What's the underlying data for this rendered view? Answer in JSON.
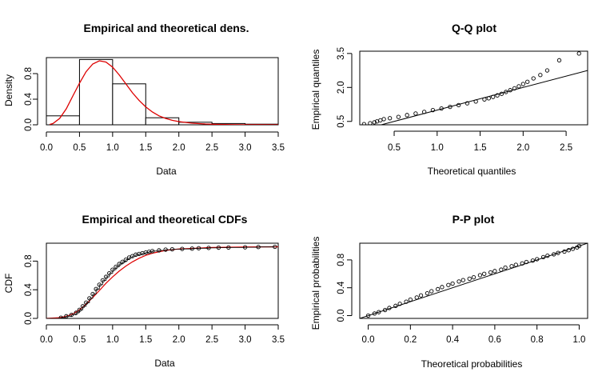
{
  "chart_data": [
    {
      "type": "bar",
      "title": "Empirical and theoretical dens.",
      "xlabel": "Data",
      "ylabel": "Density",
      "xlim": [
        0,
        3.5
      ],
      "ylim": [
        0,
        1.05
      ],
      "xticks": [
        "0.0",
        "0.5",
        "1.0",
        "1.5",
        "2.0",
        "2.5",
        "3.0",
        "3.5"
      ],
      "yticks": [
        "0.0",
        "0.4",
        "0.8"
      ],
      "histogram": {
        "breaks": [
          0,
          0.5,
          1.0,
          1.5,
          2.0,
          2.5,
          3.0,
          3.5
        ],
        "density": [
          0.14,
          1.02,
          0.64,
          0.11,
          0.04,
          0.02,
          0.01
        ]
      },
      "density_curve": {
        "color": "#dd0000",
        "x": [
          0.05,
          0.1,
          0.2,
          0.3,
          0.4,
          0.5,
          0.6,
          0.7,
          0.8,
          0.9,
          1.0,
          1.1,
          1.2,
          1.3,
          1.4,
          1.5,
          1.6,
          1.7,
          1.8,
          1.9,
          2.0,
          2.2,
          2.4,
          2.6,
          2.8,
          3.0,
          3.2,
          3.5
        ],
        "y": [
          0.005,
          0.02,
          0.1,
          0.25,
          0.45,
          0.65,
          0.83,
          0.95,
          1.0,
          0.98,
          0.9,
          0.78,
          0.64,
          0.5,
          0.38,
          0.28,
          0.2,
          0.14,
          0.1,
          0.07,
          0.05,
          0.025,
          0.012,
          0.006,
          0.003,
          0.0015,
          0.0008,
          0.0002
        ]
      }
    },
    {
      "type": "scatter",
      "title": "Q-Q plot",
      "xlabel": "Theoretical quantiles",
      "ylabel": "Empirical quantiles",
      "xlim": [
        0.1,
        2.75
      ],
      "ylim": [
        0.35,
        3.6
      ],
      "xticks": [
        "0.5",
        "1.0",
        "1.5",
        "2.0",
        "2.5"
      ],
      "yticks": [
        "0.5",
        "2.0",
        "3.5"
      ],
      "reference_line": {
        "x": [
          0.1,
          2.75
        ],
        "y": [
          0.1,
          2.75
        ]
      },
      "series": [
        {
          "x": [
            0.15,
            0.22,
            0.27,
            0.3,
            0.34,
            0.38,
            0.45,
            0.55,
            0.65,
            0.75,
            0.85,
            0.95,
            1.05,
            1.15,
            1.25,
            1.35,
            1.45,
            1.55,
            1.6,
            1.65,
            1.7,
            1.75,
            1.8,
            1.85,
            1.9,
            1.95,
            2.0,
            2.05,
            2.12,
            2.2,
            2.28,
            2.42,
            2.65
          ],
          "y": [
            0.38,
            0.42,
            0.46,
            0.5,
            0.55,
            0.6,
            0.64,
            0.7,
            0.78,
            0.85,
            0.92,
            1.0,
            1.07,
            1.14,
            1.22,
            1.3,
            1.38,
            1.47,
            1.52,
            1.58,
            1.65,
            1.72,
            1.8,
            1.88,
            1.96,
            2.05,
            2.15,
            2.25,
            2.4,
            2.55,
            2.75,
            3.2,
            3.5
          ]
        }
      ]
    },
    {
      "type": "line",
      "title": "Empirical and theoretical CDFs",
      "xlabel": "Data",
      "ylabel": "CDF",
      "xlim": [
        0,
        3.5
      ],
      "ylim": [
        0,
        1.05
      ],
      "xticks": [
        "0.0",
        "0.5",
        "1.0",
        "1.5",
        "2.0",
        "2.5",
        "3.0",
        "3.5"
      ],
      "yticks": [
        "0.0",
        "0.4",
        "0.8"
      ],
      "theoretical_cdf": {
        "color": "#dd0000",
        "x": [
          0.0,
          0.2,
          0.3,
          0.4,
          0.5,
          0.6,
          0.7,
          0.8,
          0.9,
          1.0,
          1.1,
          1.2,
          1.3,
          1.4,
          1.5,
          1.6,
          1.8,
          2.0,
          2.5,
          3.0,
          3.5
        ],
        "y": [
          0.0,
          0.01,
          0.03,
          0.06,
          0.12,
          0.2,
          0.29,
          0.39,
          0.49,
          0.58,
          0.66,
          0.73,
          0.79,
          0.84,
          0.88,
          0.91,
          0.95,
          0.97,
          0.99,
          0.997,
          1.0
        ]
      },
      "series": [
        {
          "name": "empirical",
          "x": [
            0.22,
            0.3,
            0.38,
            0.45,
            0.5,
            0.55,
            0.6,
            0.65,
            0.7,
            0.75,
            0.8,
            0.85,
            0.9,
            0.95,
            1.0,
            1.05,
            1.1,
            1.15,
            1.2,
            1.25,
            1.3,
            1.35,
            1.4,
            1.45,
            1.5,
            1.55,
            1.6,
            1.7,
            1.8,
            1.9,
            2.05,
            2.2,
            2.3,
            2.45,
            2.6,
            2.75,
            3.0,
            3.2,
            3.45
          ],
          "y": [
            0.01,
            0.03,
            0.05,
            0.08,
            0.12,
            0.17,
            0.22,
            0.28,
            0.34,
            0.41,
            0.47,
            0.53,
            0.58,
            0.63,
            0.68,
            0.72,
            0.76,
            0.79,
            0.82,
            0.85,
            0.87,
            0.89,
            0.9,
            0.91,
            0.92,
            0.93,
            0.94,
            0.95,
            0.96,
            0.965,
            0.97,
            0.975,
            0.98,
            0.984,
            0.988,
            0.99,
            0.993,
            0.997,
            1.0
          ]
        }
      ]
    },
    {
      "type": "scatter",
      "title": "P-P plot",
      "xlabel": "Theoretical probabilities",
      "ylabel": "Empirical probabilities",
      "xlim": [
        -0.04,
        1.04
      ],
      "ylim": [
        -0.04,
        1.04
      ],
      "xticks": [
        "0.0",
        "0.2",
        "0.4",
        "0.6",
        "0.8",
        "1.0"
      ],
      "yticks": [
        "0.0",
        "0.4",
        "0.8"
      ],
      "reference_line": {
        "x": [
          -0.04,
          1.04
        ],
        "y": [
          -0.04,
          1.04
        ]
      },
      "series": [
        {
          "x": [
            0.0,
            0.03,
            0.05,
            0.08,
            0.1,
            0.13,
            0.15,
            0.18,
            0.2,
            0.23,
            0.25,
            0.28,
            0.3,
            0.33,
            0.35,
            0.38,
            0.4,
            0.43,
            0.45,
            0.48,
            0.5,
            0.53,
            0.55,
            0.58,
            0.6,
            0.63,
            0.65,
            0.68,
            0.7,
            0.73,
            0.75,
            0.78,
            0.8,
            0.83,
            0.85,
            0.88,
            0.9,
            0.93,
            0.95,
            0.97,
            0.99,
            1.0
          ],
          "y": [
            0.0,
            0.03,
            0.05,
            0.08,
            0.11,
            0.14,
            0.17,
            0.2,
            0.23,
            0.26,
            0.29,
            0.32,
            0.35,
            0.38,
            0.41,
            0.44,
            0.46,
            0.49,
            0.51,
            0.53,
            0.55,
            0.58,
            0.6,
            0.62,
            0.64,
            0.66,
            0.69,
            0.71,
            0.73,
            0.75,
            0.77,
            0.79,
            0.81,
            0.84,
            0.86,
            0.88,
            0.9,
            0.92,
            0.94,
            0.96,
            0.98,
            1.0
          ]
        }
      ]
    }
  ]
}
